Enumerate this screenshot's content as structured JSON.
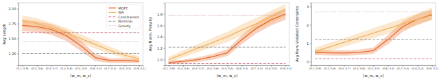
{
  "chart_data": [
    {
      "type": "line",
      "y_label": "Avg Length",
      "x_label": "(w_m, w_c)",
      "categories": [
        "(0.1, 0.9)",
        "(0.2, 0.8)",
        "(0.3, 0.7)",
        "(0.4, 0.6)",
        "(0.5, 0.5)",
        "(0.6, 0.4)",
        "(0.7, 0.3)",
        "(0.8, 0.2)",
        "(0.9, 0.1)"
      ],
      "ylim": [
        1.05,
        2.1
      ],
      "yticks": [
        1.25,
        {
          "value": 1.5,
          "label": "1.50"
        },
        1.75,
        {
          "value": 2.0,
          "label": "2.00"
        }
      ],
      "legend": "upper right",
      "series": [
        {
          "name": "MDFT",
          "color": "#e8692c",
          "line_style": "solid",
          "values": [
            1.72,
            1.7,
            1.65,
            1.55,
            1.38,
            1.18,
            1.13,
            1.13,
            1.12
          ],
          "lower": [
            1.62,
            1.61,
            1.56,
            1.46,
            1.29,
            1.12,
            1.09,
            1.09,
            1.09
          ],
          "upper": [
            1.82,
            1.79,
            1.74,
            1.64,
            1.47,
            1.24,
            1.17,
            1.17,
            1.15
          ]
        },
        {
          "name": "WA",
          "color": "#f2b35e",
          "line_style": "solid",
          "values": [
            1.8,
            1.75,
            1.68,
            1.6,
            1.5,
            1.4,
            1.3,
            1.22,
            1.16
          ],
          "lower": [
            1.71,
            1.66,
            1.6,
            1.52,
            1.43,
            1.33,
            1.24,
            1.17,
            1.12
          ],
          "upper": [
            1.89,
            1.84,
            1.76,
            1.68,
            1.57,
            1.47,
            1.36,
            1.27,
            1.2
          ]
        },
        {
          "name": "Constrained",
          "color": "#c26a77",
          "line_style": "dashed",
          "values": [
            1.6,
            1.6,
            1.6,
            1.6,
            1.6,
            1.6,
            1.6,
            1.6,
            1.6
          ]
        },
        {
          "name": "Nominal",
          "color": "#8c8c8c",
          "line_style": "dashed",
          "values": [
            1.25,
            1.25,
            1.25,
            1.25,
            1.25,
            1.25,
            1.25,
            1.25,
            1.25
          ]
        },
        {
          "name": "Greedy",
          "color": "#c9a0a0",
          "line_style": "dotted",
          "values": [
            1.45,
            1.45,
            1.45,
            1.45,
            1.45,
            1.45,
            1.45,
            1.45,
            1.45
          ]
        }
      ]
    },
    {
      "type": "line",
      "y_label": "Avg Norm. Penalty",
      "x_label": "(w_m, w_c)",
      "categories": [
        "(0.1, 0.9)",
        "(0.2, 0.8)",
        "(0.3, 0.7)",
        "(0.4, 0.6)",
        "(0.5, 0.5)",
        "(0.6, 0.4)",
        "(0.7, 0.3)",
        "(0.8, 0.2)",
        "(0.9, 0.1)"
      ],
      "ylim": [
        0.9,
        2.0
      ],
      "yticks": [
        {
          "value": 1.0,
          "label": "1.0"
        },
        1.2,
        1.4,
        1.6,
        1.8
      ],
      "series": [
        {
          "name": "MDFT",
          "color": "#e8692c",
          "line_style": "solid",
          "values": [
            0.95,
            0.97,
            1.0,
            1.05,
            1.12,
            1.35,
            1.55,
            1.7,
            1.8
          ],
          "lower": [
            0.92,
            0.94,
            0.96,
            1.0,
            1.06,
            1.27,
            1.46,
            1.6,
            1.7
          ],
          "upper": [
            0.98,
            1.0,
            1.04,
            1.1,
            1.18,
            1.43,
            1.64,
            1.8,
            1.9
          ]
        },
        {
          "name": "WA",
          "color": "#f2b35e",
          "line_style": "solid",
          "values": [
            1.0,
            1.1,
            1.2,
            1.3,
            1.4,
            1.52,
            1.63,
            1.75,
            1.88
          ],
          "lower": [
            0.95,
            1.04,
            1.13,
            1.22,
            1.31,
            1.42,
            1.53,
            1.64,
            1.76
          ],
          "upper": [
            1.05,
            1.16,
            1.27,
            1.38,
            1.49,
            1.62,
            1.73,
            1.86,
            1.98
          ]
        },
        {
          "name": "Constrained",
          "color": "#c26a77",
          "line_style": "dashed",
          "values": [
            0.93,
            0.93,
            0.93,
            0.93,
            0.93,
            0.93,
            0.93,
            0.93,
            0.93
          ]
        },
        {
          "name": "Nominal",
          "color": "#8c8c8c",
          "line_style": "dashed",
          "values": [
            1.22,
            1.22,
            1.22,
            1.22,
            1.22,
            1.22,
            1.22,
            1.22,
            1.22
          ]
        },
        {
          "name": "Greedy",
          "color": "#c9a0a0",
          "line_style": "dotted",
          "values": [
            1.78,
            1.78,
            1.78,
            1.78,
            1.78,
            1.78,
            1.78,
            1.78,
            1.78
          ]
        }
      ]
    },
    {
      "type": "line",
      "y_label": "Avg Num Violated Constraints",
      "x_label": "(w_m, w_c)",
      "categories": [
        "(0.1, 0.9)",
        "(0.2, 0.8)",
        "(0.3, 0.7)",
        "(0.4, 0.6)",
        "(0.5, 0.5)",
        "(0.6, 0.4)",
        "(0.7, 0.3)",
        "(0.8, 0.2)",
        "(0.9, 0.1)"
      ],
      "ylim": [
        -0.2,
        3.2
      ],
      "yticks": [
        0,
        1,
        2,
        3
      ],
      "series": [
        {
          "name": "MDFT",
          "color": "#e8692c",
          "line_style": "solid",
          "values": [
            0.5,
            0.48,
            0.47,
            0.5,
            0.6,
            1.2,
            1.9,
            2.3,
            2.55
          ],
          "lower": [
            0.35,
            0.34,
            0.33,
            0.35,
            0.43,
            0.95,
            1.62,
            2.02,
            2.28
          ],
          "upper": [
            0.65,
            0.62,
            0.61,
            0.65,
            0.77,
            1.45,
            2.18,
            2.58,
            2.82
          ]
        },
        {
          "name": "WA",
          "color": "#f2b35e",
          "line_style": "solid",
          "values": [
            0.55,
            0.8,
            1.05,
            1.3,
            1.55,
            1.8,
            2.05,
            2.3,
            2.6
          ],
          "lower": [
            0.35,
            0.58,
            0.82,
            1.05,
            1.28,
            1.52,
            1.75,
            1.98,
            2.26
          ],
          "upper": [
            0.75,
            1.02,
            1.28,
            1.55,
            1.82,
            2.08,
            2.35,
            2.62,
            2.94
          ]
        },
        {
          "name": "Constrained",
          "color": "#c26a77",
          "line_style": "dashed",
          "values": [
            0.15,
            0.15,
            0.15,
            0.15,
            0.15,
            0.15,
            0.15,
            0.15,
            0.15
          ]
        },
        {
          "name": "Nominal",
          "color": "#8c8c8c",
          "line_style": "dashed",
          "values": [
            1.2,
            1.2,
            1.2,
            1.2,
            1.2,
            1.2,
            1.2,
            1.2,
            1.2
          ]
        },
        {
          "name": "Greedy",
          "color": "#c9a0a0",
          "line_style": "dotted",
          "values": [
            2.7,
            2.7,
            2.7,
            2.7,
            2.7,
            2.7,
            2.7,
            2.7,
            2.7
          ]
        }
      ]
    }
  ]
}
